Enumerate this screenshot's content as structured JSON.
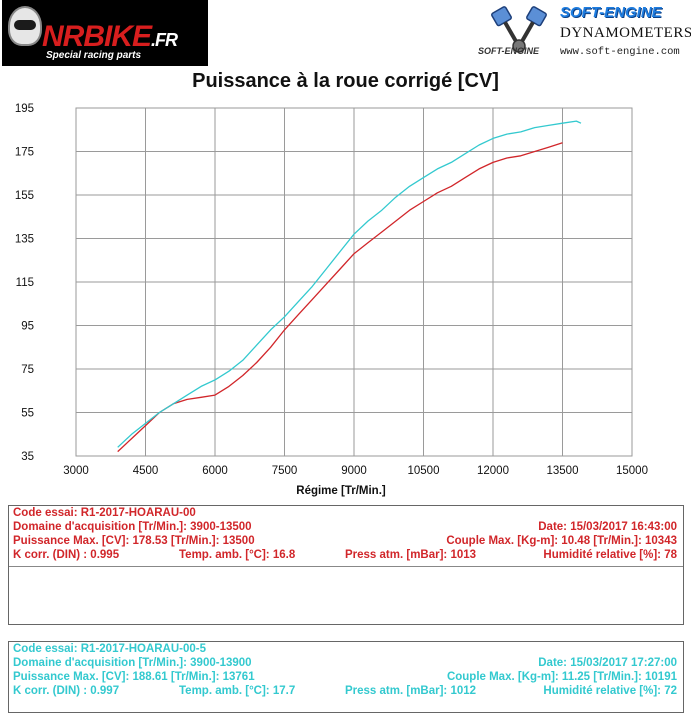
{
  "header": {
    "left_logo": {
      "brand_main": "NRBIKE",
      "brand_suffix": ".FR",
      "tagline": "Special racing parts"
    },
    "right_logo": {
      "title": "SOFT-ENGINE",
      "subtitle": "DYNAMOMETERS",
      "url": "www.soft-engine.com",
      "small_mark": "SOFT-ENGINE"
    }
  },
  "colors": {
    "run1": "#d1262a",
    "run2": "#33c9cf",
    "grid": "#9a9a9a"
  },
  "chart_data": {
    "type": "line",
    "title": "Puissance à la roue corrigé [CV]",
    "xlabel": "Régime [Tr/Min.]",
    "ylabel": "",
    "xlim": [
      3000,
      15000
    ],
    "ylim": [
      35,
      195
    ],
    "xticks": [
      3000,
      4500,
      6000,
      7500,
      9000,
      10500,
      12000,
      13500,
      15000
    ],
    "yticks": [
      35,
      55,
      75,
      95,
      115,
      135,
      155,
      175,
      195
    ],
    "grid": true,
    "series": [
      {
        "color": "#d1262a",
        "x": [
          3900,
          4200,
          4500,
          4800,
          5100,
          5400,
          5700,
          6000,
          6300,
          6600,
          6900,
          7200,
          7500,
          7800,
          8100,
          8400,
          8700,
          9000,
          9300,
          9600,
          9900,
          10200,
          10500,
          10800,
          11100,
          11400,
          11700,
          12000,
          12300,
          12600,
          12900,
          13200,
          13500
        ],
        "y": [
          37,
          43,
          49,
          55,
          59,
          61,
          62,
          63,
          67,
          72,
          78,
          85,
          93,
          100,
          107,
          114,
          121,
          128,
          133,
          138,
          143,
          148,
          152,
          156,
          159,
          163,
          167,
          170,
          172,
          173,
          175,
          177,
          179
        ]
      },
      {
        "color": "#33c9cf",
        "x": [
          3900,
          4200,
          4500,
          4800,
          5100,
          5400,
          5700,
          6000,
          6300,
          6600,
          6900,
          7200,
          7500,
          7800,
          8100,
          8400,
          8700,
          9000,
          9300,
          9600,
          9900,
          10200,
          10500,
          10800,
          11100,
          11400,
          11700,
          12000,
          12300,
          12600,
          12900,
          13200,
          13500,
          13800,
          13900
        ],
        "y": [
          39,
          45,
          50,
          55,
          59,
          63,
          67,
          70,
          74,
          79,
          86,
          93,
          99,
          106,
          113,
          121,
          129,
          137,
          143,
          148,
          154,
          159,
          163,
          167,
          170,
          174,
          178,
          181,
          183,
          184,
          186,
          187,
          188,
          189,
          188
        ]
      }
    ]
  },
  "info": {
    "run1": {
      "code": "Code essai:  R1-2017-HOARAU-00",
      "domaine": "Domaine d'acquisition [Tr/Min.]: 3900-13500",
      "date": "Date:  15/03/2017   16:43:00",
      "puissance": "Puissance Max. [CV]: 178.53   [Tr/Min.]: 13500",
      "couple": "Couple Max. [Kg-m]: 10.48   [Tr/Min.]: 10343",
      "kcorr": "K corr. (DIN) : 0.995",
      "temp": "Temp. amb. [°C]: 16.8",
      "press": "Press atm. [mBar]: 1013",
      "humid": "Humidité relative [%]: 78"
    },
    "run2": {
      "code": "Code essai:  R1-2017-HOARAU-00-5",
      "domaine": "Domaine d'acquisition [Tr/Min.]: 3900-13900",
      "date": "Date:  15/03/2017   17:27:00",
      "puissance": "Puissance Max. [CV]: 188.61   [Tr/Min.]: 13761",
      "couple": "Couple Max. [Kg-m]: 11.25   [Tr/Min.]: 10191",
      "kcorr": "K corr. (DIN) : 0.997",
      "temp": "Temp. amb. [°C]: 17.7",
      "press": "Press atm. [mBar]: 1012",
      "humid": "Humidité relative [%]: 72"
    }
  }
}
